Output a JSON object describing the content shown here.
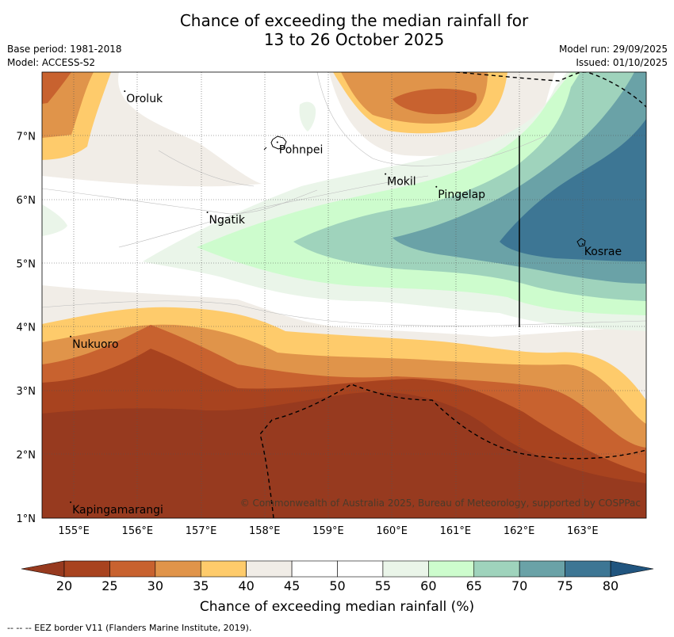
{
  "title": {
    "line1": "Chance of exceeding the median rainfall for",
    "line2": "13 to 26 October 2025"
  },
  "meta": {
    "base_period": "Base period: 1981-2018",
    "model": "Model: ACCESS-S2",
    "model_run": "Model run: 29/09/2025",
    "issued": "Issued: 01/10/2025"
  },
  "map": {
    "lon_range": [
      154.5,
      164.0
    ],
    "lat_range": [
      1.0,
      8.0
    ],
    "lon_ticks": [
      "155°E",
      "156°E",
      "157°E",
      "158°E",
      "159°E",
      "160°E",
      "161°E",
      "162°E",
      "163°E"
    ],
    "lat_ticks": [
      "1°N",
      "2°N",
      "3°N",
      "4°N",
      "5°N",
      "6°N",
      "7°N"
    ],
    "places": [
      {
        "name": "Oroluk",
        "lon": 155.8,
        "lat": 7.7
      },
      {
        "name": "Pohnpei",
        "lon": 158.2,
        "lat": 6.9
      },
      {
        "name": "Mokil",
        "lon": 159.9,
        "lat": 6.4
      },
      {
        "name": "Pingelap",
        "lon": 160.7,
        "lat": 6.2
      },
      {
        "name": "Ngatik",
        "lon": 157.1,
        "lat": 5.8
      },
      {
        "name": "Kosrae",
        "lon": 163.0,
        "lat": 5.3
      },
      {
        "name": "Nukuoro",
        "lon": 154.95,
        "lat": 3.85
      },
      {
        "name": "Kapingamarangi",
        "lon": 154.95,
        "lat": 1.25
      }
    ],
    "copyright": "© Commonwealth of Australia 2025, Bureau of Meteorology, supported by COSPPac"
  },
  "colorbar": {
    "ticks": [
      "20",
      "25",
      "30",
      "35",
      "40",
      "45",
      "50",
      "55",
      "60",
      "65",
      "70",
      "75",
      "80"
    ],
    "colors": [
      "#a8431f",
      "#c8622f",
      "#e0944a",
      "#fecb6b",
      "#f1ede7",
      "#ffffff",
      "#ffffff",
      "#eaf5e9",
      "#cdfccd",
      "#9fd3bc",
      "#6aa2a7",
      "#3d7694"
    ],
    "under_color": "#973a1f",
    "over_color": "#21557f",
    "label": "Chance of exceeding median rainfall (%)"
  },
  "footer": "--  --  -- EEZ border V11 (Flanders Marine Institute, 2019)."
}
